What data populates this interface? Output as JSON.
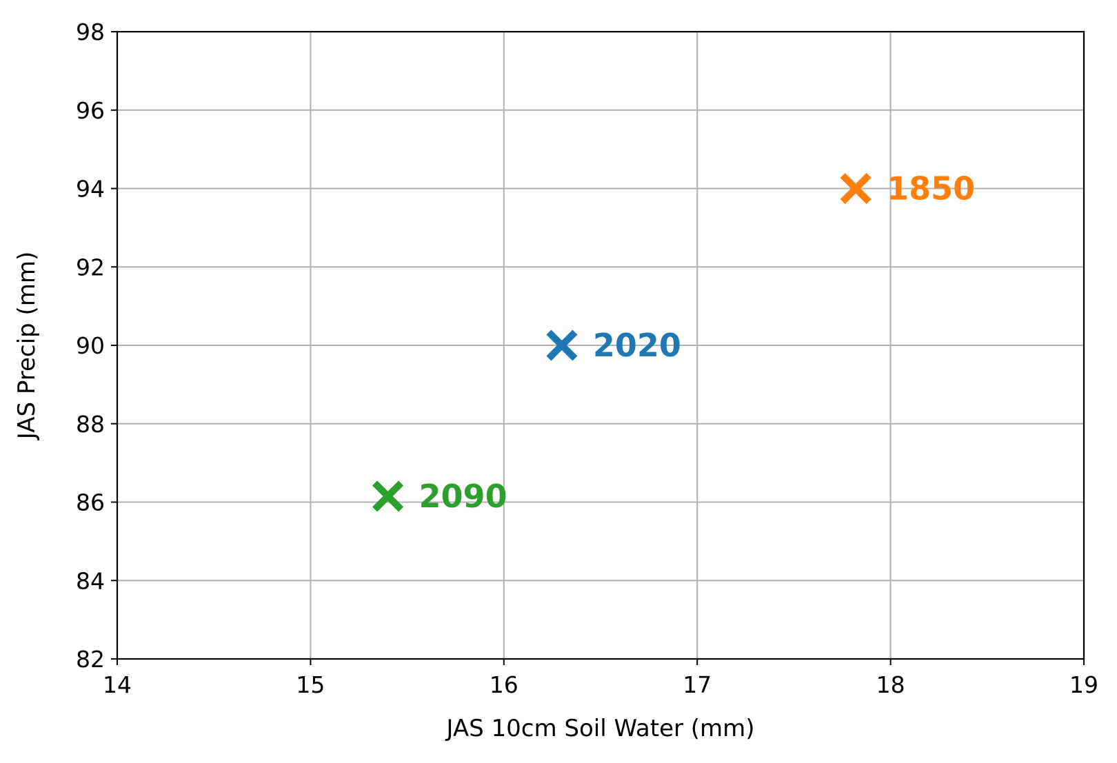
{
  "chart_data": {
    "type": "scatter",
    "title": "",
    "xlabel": "JAS 10cm Soil Water (mm)",
    "ylabel": "JAS Precip (mm)",
    "xlim": [
      14,
      19
    ],
    "ylim": [
      82,
      98
    ],
    "xticks": [
      14,
      15,
      16,
      17,
      18,
      19
    ],
    "yticks": [
      82,
      84,
      86,
      88,
      90,
      92,
      94,
      96,
      98
    ],
    "grid": true,
    "marker": "x",
    "points": [
      {
        "label": "1850",
        "x": 17.82,
        "y": 94.0,
        "color": "#ff7f0e"
      },
      {
        "label": "2020",
        "x": 16.3,
        "y": 90.0,
        "color": "#1f77b4"
      },
      {
        "label": "2090",
        "x": 15.4,
        "y": 86.15,
        "color": "#2ca02c"
      }
    ]
  }
}
